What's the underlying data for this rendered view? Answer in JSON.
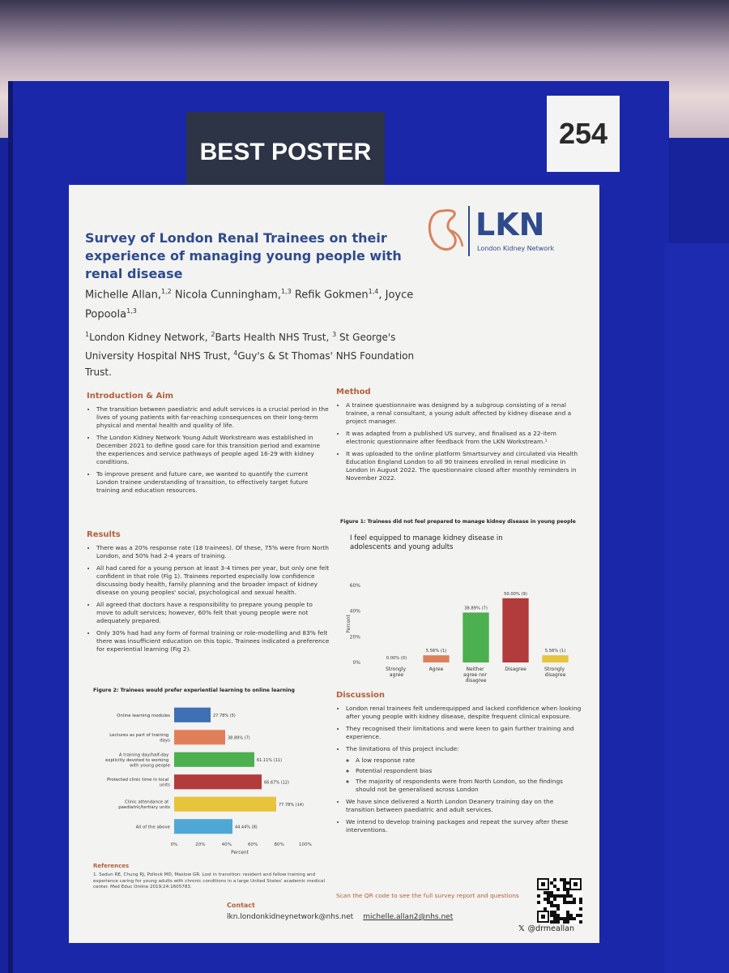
{
  "board": {
    "badge": "BEST POSTER",
    "number": "254"
  },
  "poster": {
    "title": "Survey of London Renal Trainees on their experience of managing young people with renal disease",
    "authors": [
      {
        "name": "Michelle Allan,",
        "sup": "1,2"
      },
      {
        "name": "Nicola Cunningham,",
        "sup": "1,3"
      },
      {
        "name": "Refik Gokmen",
        "sup": "1,4",
        "after": ","
      },
      {
        "name": "Joyce Popoola",
        "sup": "1,3"
      }
    ],
    "affiliations": [
      {
        "sup": "1",
        "text": "London Kidney Network, "
      },
      {
        "sup": "2",
        "text": "Barts Health NHS Trust, "
      },
      {
        "sup": "3",
        "text": " St George's University Hospital NHS Trust, "
      },
      {
        "sup": "4",
        "text": "Guy's & St Thomas' NHS Foundation Trust."
      }
    ],
    "logo": {
      "mark": "LKN",
      "name": "London Kidney Network"
    },
    "sections": {
      "intro": {
        "heading": "Introduction & Aim",
        "bullets": [
          "The transition between paediatric and adult services is a crucial period in the lives of young patients with far-reaching consequences on their long-term physical and mental health and quality of life.",
          "The London Kidney Network Young Adult Workstream was established in December 2021 to define good care for this transition period and examine the experiences and service pathways of people aged 16-29 with kidney conditions.",
          "To improve present and future care, we wanted to quantify the current London trainee understanding of transition, to effectively target future training and education resources."
        ]
      },
      "method": {
        "heading": "Method",
        "bullets": [
          "A trainee questionnaire was designed by a subgroup consisting of a renal trainee, a renal consultant, a young adult affected by kidney disease and a project manager.",
          "It was adapted from a published US survey, and finalised as a 22-item electronic questionnaire after feedback from the LKN Workstream.¹",
          "It was uploaded to the online platform Smartsurvey and circulated via Health Education England London to all 90 trainees enrolled in renal medicine in London in August 2022. The questionnaire closed after monthly reminders in November 2022."
        ]
      },
      "results": {
        "heading": "Results",
        "bullets": [
          "There was a 20% response rate (18 trainees). Of these, 75% were from North London, and 50% had 2-4 years of training.",
          "All had cared for a young person at least 3-4 times per year, but only one felt confident in that role (Fig 1). Trainees reported especially low confidence discussing body health, family planning and the broader impact of kidney disease on young peoples' social, psychological and sexual health.",
          "All agreed that doctors have a responsibility to prepare young people to move to adult services; however, 60% felt that young people were not adequately prepared.",
          "Only 30% had had any form of formal training or role-modelling and 83% felt there was insufficient education on this topic. Trainees indicated a preference for experiential learning (Fig 2)."
        ]
      },
      "discussion": {
        "heading": "Discussion",
        "bullets": [
          "London renal trainees felt underequipped and lacked confidence when looking after young people with kidney disease, despite frequent clinical exposure.",
          "They recognised their limitations and were keen to gain further training and experience.",
          {
            "text": "The limitations of this project include:",
            "sub": [
              "A low response rate",
              "Potential respondent bias",
              "The majority of respondents were from North London, so the findings should not be generalised across London"
            ]
          },
          "We have since delivered a North London Deanery training day on the transition between paediatric and adult services.",
          "We intend to develop training packages and repeat the survey after these interventions."
        ]
      }
    },
    "references": {
      "heading": "References",
      "items": [
        "1. Sadun RE, Chung RJ, Pollock MD, Maslow GR. Lost in transition: resident and fellow training and experience caring for young adults with chronic conditions in a large United States' academic medical center. Med Educ Online 2019;24:1605783."
      ]
    },
    "contact": {
      "heading": "Contact",
      "emails": [
        "lkn.londonkidneynetwork@nhs.net",
        "michelle.allan2@nhs.net"
      ]
    },
    "qr_caption": "Scan the QR code to see the full survey report and questions",
    "handle": "@drmeallan"
  },
  "chart_data": [
    {
      "type": "bar",
      "caption": "Figure 1: Trainees did not feel prepared to manage kidney disease in young people",
      "title": "I feel equipped to manage kidney disease in adolescents and young adults",
      "y_label": "Percent",
      "categories": [
        "Strongly agree",
        "Agree",
        "Neither agree nor disagree",
        "Disagree",
        "Strongly disagree"
      ],
      "values": [
        0,
        5.56,
        38.89,
        50,
        5.56
      ],
      "value_labels": [
        "0.00% (0)",
        "5.56% (1)",
        "38.89% (7)",
        "50.00% (9)",
        "5.56% (1)"
      ],
      "colors": [
        "#9e9e9e",
        "#e0805a",
        "#4caf50",
        "#b23b3b",
        "#e6c43c"
      ],
      "ylim": [
        0,
        60
      ],
      "yticks": [
        {
          "value": 0,
          "label": "0%"
        },
        {
          "value": 20,
          "label": "20%"
        },
        {
          "value": 40,
          "label": "40%"
        },
        {
          "value": 60,
          "label": "60%"
        }
      ]
    },
    {
      "type": "bar",
      "orientation": "horizontal",
      "caption": "Figure 2: Trainees would prefer experiential learning to online learning",
      "x_label": "Percent",
      "categories": [
        "Online learning modules",
        "Lectures as part of training days",
        "A training day/half-day explicitly devoted to working with young people",
        "Protected clinic time in local units",
        "Clinic attendance at paediatric/tertiary units",
        "All of the above"
      ],
      "values": [
        27.78,
        38.89,
        61.11,
        66.67,
        77.78,
        44.44
      ],
      "value_labels": [
        "27.78% (5)",
        "38.89% (7)",
        "61.11% (11)",
        "66.67% (12)",
        "77.78% (14)",
        "44.44% (8)"
      ],
      "colors": [
        "#3f6fb5",
        "#e0805a",
        "#4caf50",
        "#b23b3b",
        "#e6c43c",
        "#4fa7d6"
      ],
      "xlim": [
        0,
        100
      ],
      "xticks": [
        {
          "value": 0,
          "label": "0%"
        },
        {
          "value": 20,
          "label": "20%"
        },
        {
          "value": 40,
          "label": "40%"
        },
        {
          "value": 60,
          "label": "60%"
        },
        {
          "value": 80,
          "label": "80%"
        },
        {
          "value": 100,
          "label": "100%"
        }
      ]
    }
  ]
}
